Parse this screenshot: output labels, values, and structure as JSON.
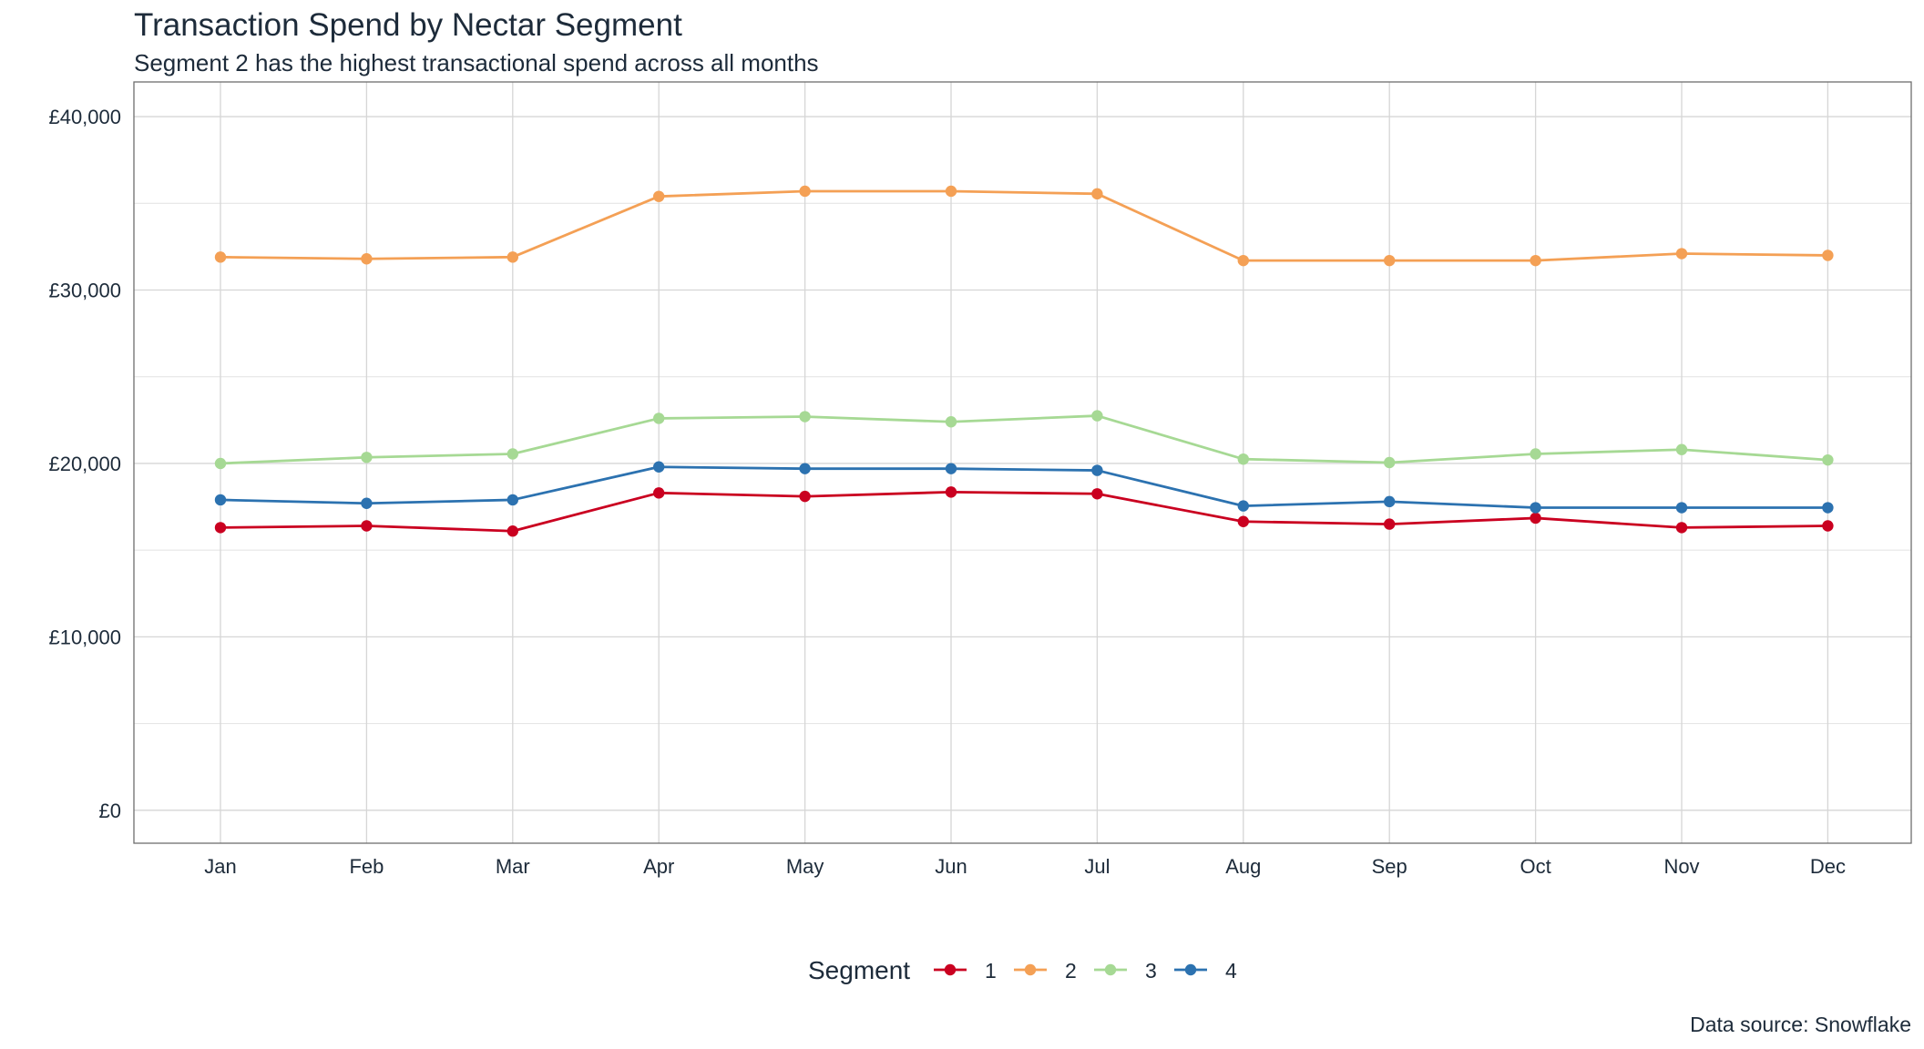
{
  "chart_data": {
    "type": "line",
    "title": "Transaction Spend by Nectar Segment",
    "subtitle": "Segment 2 has the highest transactional spend across all months",
    "caption": "Data source: Snowflake",
    "xlabel": "",
    "ylabel": "",
    "categories": [
      "Jan",
      "Feb",
      "Mar",
      "Apr",
      "May",
      "Jun",
      "Jul",
      "Aug",
      "Sep",
      "Oct",
      "Nov",
      "Dec"
    ],
    "ylim": [
      -1900,
      42000
    ],
    "yticks": [
      0,
      10000,
      20000,
      30000,
      40000
    ],
    "ytick_labels": [
      "£0",
      "£10,000",
      "£20,000",
      "£30,000",
      "£40,000"
    ],
    "grid": true,
    "legend": {
      "title": "Segment",
      "position": "bottom"
    },
    "series": [
      {
        "name": "1",
        "color": "#ca0020",
        "values": [
          16300,
          16400,
          16100,
          18300,
          18100,
          18350,
          18250,
          16650,
          16500,
          16850,
          16300,
          16400
        ]
      },
      {
        "name": "2",
        "color": "#f4a055",
        "values": [
          31900,
          31800,
          31900,
          35400,
          35700,
          35700,
          35550,
          31700,
          31700,
          31700,
          32100,
          32000
        ]
      },
      {
        "name": "3",
        "color": "#a6d994",
        "values": [
          20000,
          20350,
          20550,
          22600,
          22700,
          22400,
          22750,
          20250,
          20050,
          20550,
          20800,
          20200
        ]
      },
      {
        "name": "4",
        "color": "#2c72b0",
        "values": [
          17900,
          17700,
          17900,
          19800,
          19700,
          19700,
          19600,
          17550,
          17800,
          17450,
          17450,
          17450
        ]
      }
    ]
  }
}
